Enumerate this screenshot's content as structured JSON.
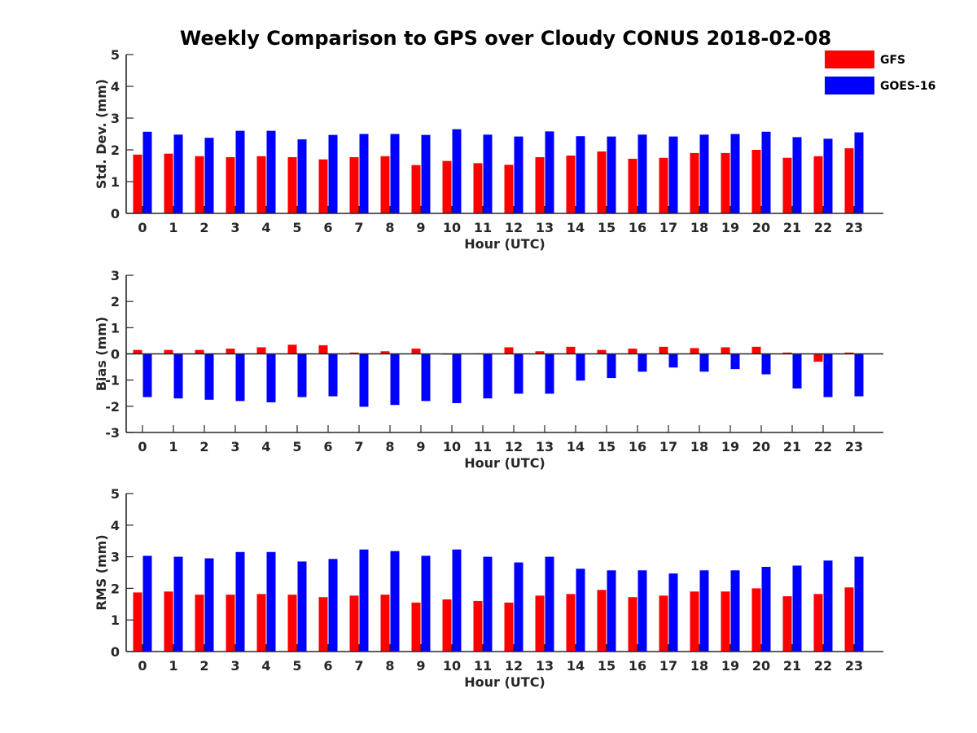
{
  "title": "Weekly Comparison to GPS over Cloudy CONUS 2018-02-08",
  "legend": [
    {
      "name": "GFS",
      "color": "#ff0000"
    },
    {
      "name": "GOES-16",
      "color": "#0000ff"
    }
  ],
  "chart_data": [
    {
      "type": "bar",
      "xlabel": "Hour (UTC)",
      "ylabel": "Std. Dev. (mm)",
      "ylim": [
        0,
        5
      ],
      "yticks": [
        0,
        1,
        2,
        3,
        4,
        5
      ],
      "categories": [
        "0",
        "1",
        "2",
        "3",
        "4",
        "5",
        "6",
        "7",
        "8",
        "9",
        "10",
        "11",
        "12",
        "13",
        "14",
        "15",
        "16",
        "17",
        "18",
        "19",
        "20",
        "21",
        "22",
        "23"
      ],
      "series": [
        {
          "name": "GFS",
          "color": "#ff0000",
          "values": [
            1.85,
            1.88,
            1.8,
            1.77,
            1.8,
            1.77,
            1.7,
            1.77,
            1.8,
            1.52,
            1.65,
            1.58,
            1.53,
            1.77,
            1.82,
            1.95,
            1.72,
            1.75,
            1.9,
            1.9,
            2.0,
            1.75,
            1.8,
            2.05
          ]
        },
        {
          "name": "GOES-16",
          "color": "#0000ff",
          "values": [
            2.57,
            2.48,
            2.38,
            2.6,
            2.6,
            2.33,
            2.47,
            2.5,
            2.5,
            2.47,
            2.65,
            2.48,
            2.42,
            2.58,
            2.43,
            2.42,
            2.48,
            2.42,
            2.48,
            2.5,
            2.57,
            2.4,
            2.35,
            2.55
          ]
        }
      ]
    },
    {
      "type": "bar",
      "xlabel": "Hour (UTC)",
      "ylabel": "Bias (mm)",
      "ylim": [
        -3,
        3
      ],
      "yticks": [
        -3,
        -2,
        -1,
        0,
        1,
        2,
        3
      ],
      "categories": [
        "0",
        "1",
        "2",
        "3",
        "4",
        "5",
        "6",
        "7",
        "8",
        "9",
        "10",
        "11",
        "12",
        "13",
        "14",
        "15",
        "16",
        "17",
        "18",
        "19",
        "20",
        "21",
        "22",
        "23"
      ],
      "series": [
        {
          "name": "GFS",
          "color": "#ff0000",
          "values": [
            0.15,
            0.15,
            0.15,
            0.2,
            0.25,
            0.35,
            0.33,
            0.05,
            0.1,
            0.2,
            -0.03,
            0.02,
            0.25,
            0.1,
            0.27,
            0.15,
            0.2,
            0.27,
            0.22,
            0.25,
            0.27,
            0.05,
            -0.3,
            0.05
          ]
        },
        {
          "name": "GOES-16",
          "color": "#0000ff",
          "values": [
            -1.65,
            -1.7,
            -1.75,
            -1.8,
            -1.85,
            -1.65,
            -1.62,
            -2.02,
            -1.95,
            -1.8,
            -1.88,
            -1.7,
            -1.52,
            -1.52,
            -1.02,
            -0.92,
            -0.68,
            -0.52,
            -0.68,
            -0.58,
            -0.78,
            -1.32,
            -1.65,
            -1.62
          ]
        }
      ]
    },
    {
      "type": "bar",
      "xlabel": "Hour (UTC)",
      "ylabel": "RMS (mm)",
      "ylim": [
        0,
        5
      ],
      "yticks": [
        0,
        1,
        2,
        3,
        4,
        5
      ],
      "categories": [
        "0",
        "1",
        "2",
        "3",
        "4",
        "5",
        "6",
        "7",
        "8",
        "9",
        "10",
        "11",
        "12",
        "13",
        "14",
        "15",
        "16",
        "17",
        "18",
        "19",
        "20",
        "21",
        "22",
        "23"
      ],
      "series": [
        {
          "name": "GFS",
          "color": "#ff0000",
          "values": [
            1.87,
            1.9,
            1.8,
            1.8,
            1.82,
            1.8,
            1.72,
            1.77,
            1.8,
            1.55,
            1.65,
            1.6,
            1.55,
            1.77,
            1.82,
            1.95,
            1.72,
            1.77,
            1.9,
            1.9,
            2.0,
            1.75,
            1.82,
            2.03
          ]
        },
        {
          "name": "GOES-16",
          "color": "#0000ff",
          "values": [
            3.03,
            3.0,
            2.95,
            3.15,
            3.15,
            2.85,
            2.93,
            3.23,
            3.18,
            3.03,
            3.23,
            3.0,
            2.82,
            3.0,
            2.62,
            2.57,
            2.57,
            2.47,
            2.57,
            2.57,
            2.68,
            2.72,
            2.88,
            3.0
          ]
        }
      ]
    }
  ]
}
